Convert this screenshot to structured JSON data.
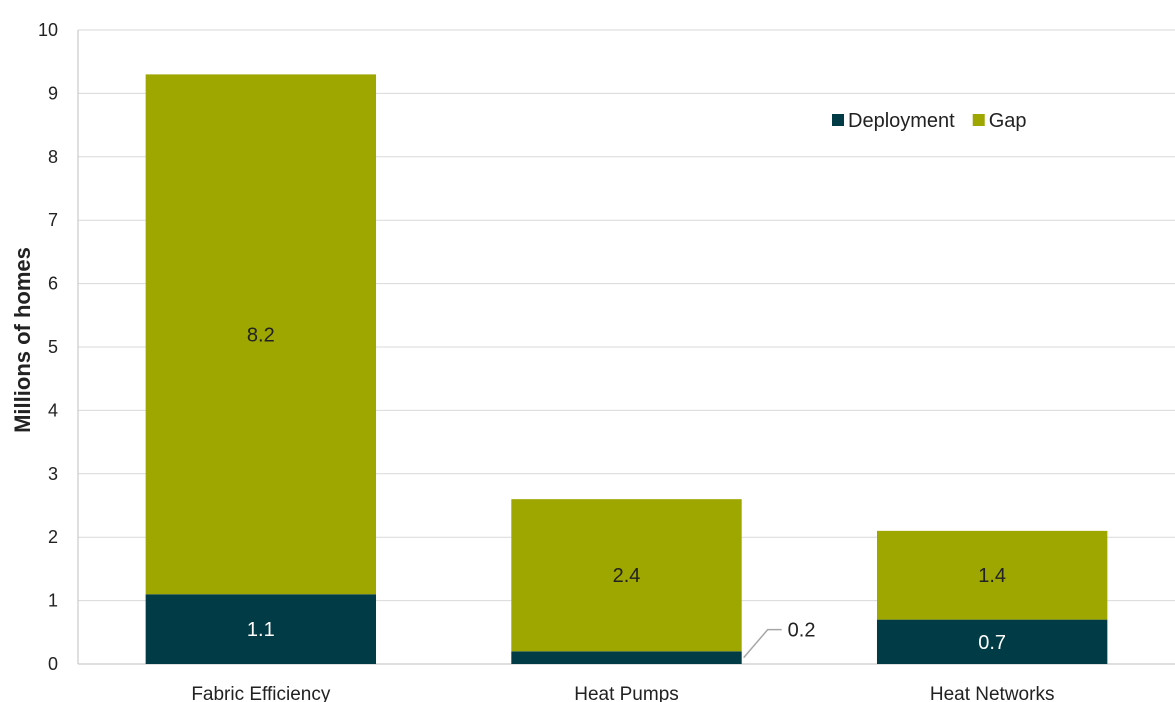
{
  "chart_data": {
    "type": "bar",
    "stacked": true,
    "categories": [
      "Fabric Efficiency",
      "Heat Pumps",
      "Heat Networks"
    ],
    "series": [
      {
        "name": "Deployment",
        "values": [
          1.1,
          0.2,
          0.7
        ],
        "color": "#003b46",
        "label_color": "#ffffff"
      },
      {
        "name": "Gap",
        "values": [
          8.2,
          2.4,
          1.4
        ],
        "color": "#9ea700",
        "label_color": "#222222"
      }
    ],
    "data_labels": {
      "Deployment": [
        "1.1",
        "0.2",
        "0.7"
      ],
      "Gap": [
        "8.2",
        "2.4",
        "1.4"
      ]
    },
    "ylabel": "Millions of homes",
    "ylim": [
      0,
      10
    ],
    "yticks": [
      0,
      1,
      2,
      3,
      4,
      5,
      6,
      7,
      8,
      9,
      10
    ],
    "grid": true,
    "legend_position": "top-right"
  }
}
